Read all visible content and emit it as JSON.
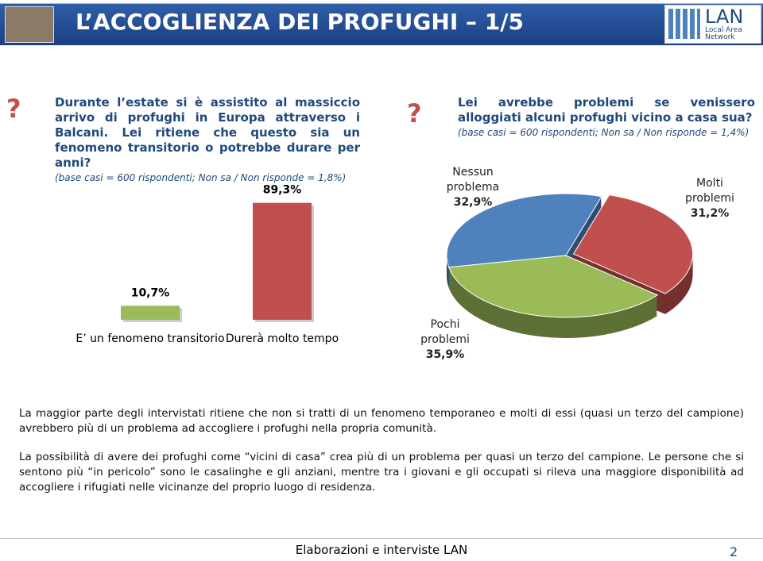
{
  "header": {
    "title": "L’ACCOGLIENZA DEI PROFUGHI – 1/5",
    "logo": "LAN",
    "logo_subtitle": "Local Area Network"
  },
  "questions": [
    {
      "mark": "?",
      "text": "Durante l’estate si è assistito al massiccio arrivo di profughi in Europa attraverso i Balcani. Lei ritiene che questo sia un fenomeno transitorio o potrebbe durare per anni?",
      "note": "(base casi = 600 rispondenti; Non sa / Non risponde = 1,8%)"
    },
    {
      "mark": "?",
      "text": "Lei avrebbe problemi se venissero alloggiati alcuni profughi vicino a casa sua?",
      "note": "(base casi = 600 rispondenti; Non sa / Non risponde = 1,4%)"
    }
  ],
  "chart_data": [
    {
      "type": "bar",
      "categories": [
        "E’ un fenomeno transitorio",
        "Durerà molto tempo"
      ],
      "values": [
        10.7,
        89.3
      ],
      "value_labels": [
        "10,7%",
        "89,3%"
      ],
      "colors": [
        "#9bbb59",
        "#c0504d"
      ]
    },
    {
      "type": "pie",
      "categories": [
        "Nessun problema",
        "Molti problemi",
        "Pochi problemi"
      ],
      "values": [
        32.9,
        31.2,
        35.9
      ],
      "value_labels": [
        "32,9%",
        "31,2%",
        "35,9%"
      ],
      "colors": [
        "#4f81bd",
        "#c0504d",
        "#9bbb59"
      ]
    }
  ],
  "notes": [
    "La maggior parte degli intervistati ritiene che non si tratti di un fenomeno temporaneo e molti di essi (quasi un terzo del campione) avrebbero più di un problema ad accogliere i profughi nella propria comunità.",
    "La possibilità di avere dei profughi come “vicini di casa” crea più di un problema per quasi un terzo del campione. Le persone che si sentono più “in pericolo” sono le casalinghe e gli anziani, mentre tra i giovani e gli occupati si rileva una maggiore disponibilità ad accogliere i rifugiati nelle vicinanze del proprio luogo di residenza."
  ],
  "footer": {
    "source": "Elaborazioni e interviste LAN",
    "page": "2"
  }
}
